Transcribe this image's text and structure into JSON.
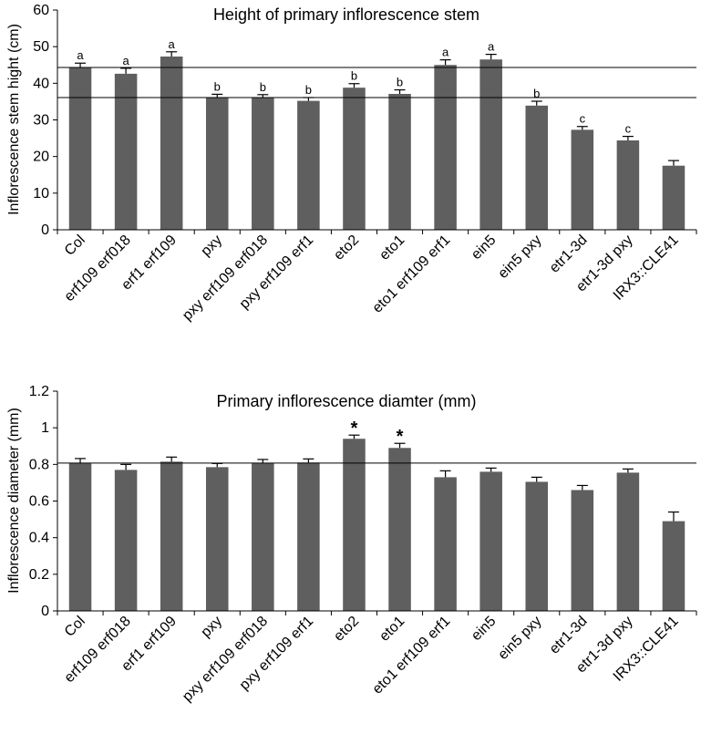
{
  "chart_data": [
    {
      "type": "bar",
      "title": "Height of primary inflorescence stem",
      "ylabel": "Inflorescence stem hight (cm)",
      "xlabel": "",
      "ylim": [
        0,
        60
      ],
      "yticks": [
        "0",
        "10",
        "20",
        "30",
        "40",
        "50",
        "60"
      ],
      "grid": false,
      "bar_color": "#5f5f5f",
      "categories": [
        "Col",
        "erf109 erf018",
        "erf1 erf109",
        "pxy",
        "pxy erf109 erf018",
        "pxy erf109 erf1",
        "eto2",
        "eto1",
        "eto1 erf109 erf1",
        "ein5",
        "ein5 pxy",
        "etr1-3d",
        "etr1-3d pxy",
        "IRX3::CLE41"
      ],
      "values": [
        44.3,
        42.6,
        47.3,
        36.1,
        36.0,
        35.2,
        38.8,
        37.1,
        45.0,
        46.5,
        33.9,
        27.3,
        24.4,
        17.5
      ],
      "errors": [
        1.2,
        1.5,
        1.3,
        0.9,
        0.9,
        0.9,
        1.1,
        1.1,
        1.4,
        1.4,
        1.2,
        0.9,
        1.1,
        1.4
      ],
      "annotations": [
        "a",
        "a",
        "a",
        "b",
        "b",
        "b",
        "b",
        "b",
        "a",
        "a",
        "b",
        "c",
        "c",
        ""
      ],
      "reference_lines": [
        44.3,
        36.1
      ]
    },
    {
      "type": "bar",
      "title": "Primary inflorescence diamter (mm)",
      "ylabel": "Inflorescence diameter (mm)",
      "xlabel": "",
      "ylim": [
        0,
        1.2
      ],
      "yticks": [
        "0",
        "0.2",
        "0.4",
        "0.6",
        "0.8",
        "1",
        "1.2"
      ],
      "grid": false,
      "bar_color": "#5f5f5f",
      "categories": [
        "Col",
        "erf109 erf018",
        "erf1 erf109",
        "pxy",
        "pxy erf109 erf018",
        "pxy erf109 erf1",
        "eto2",
        "eto1",
        "eto1 erf109 erf1",
        "ein5",
        "ein5 pxy",
        "etr1-3d",
        "etr1-3d pxy",
        "IRX3::CLE41"
      ],
      "values": [
        0.807,
        0.77,
        0.815,
        0.785,
        0.807,
        0.81,
        0.94,
        0.89,
        0.73,
        0.76,
        0.705,
        0.66,
        0.755,
        0.49
      ],
      "errors": [
        0.025,
        0.03,
        0.025,
        0.02,
        0.02,
        0.02,
        0.02,
        0.025,
        0.035,
        0.02,
        0.025,
        0.025,
        0.02,
        0.05
      ],
      "annotations": [
        "",
        "",
        "",
        "",
        "",
        "",
        "*",
        "*",
        "",
        "",
        "",
        "",
        "",
        ""
      ],
      "reference_lines": [
        0.807
      ]
    }
  ]
}
